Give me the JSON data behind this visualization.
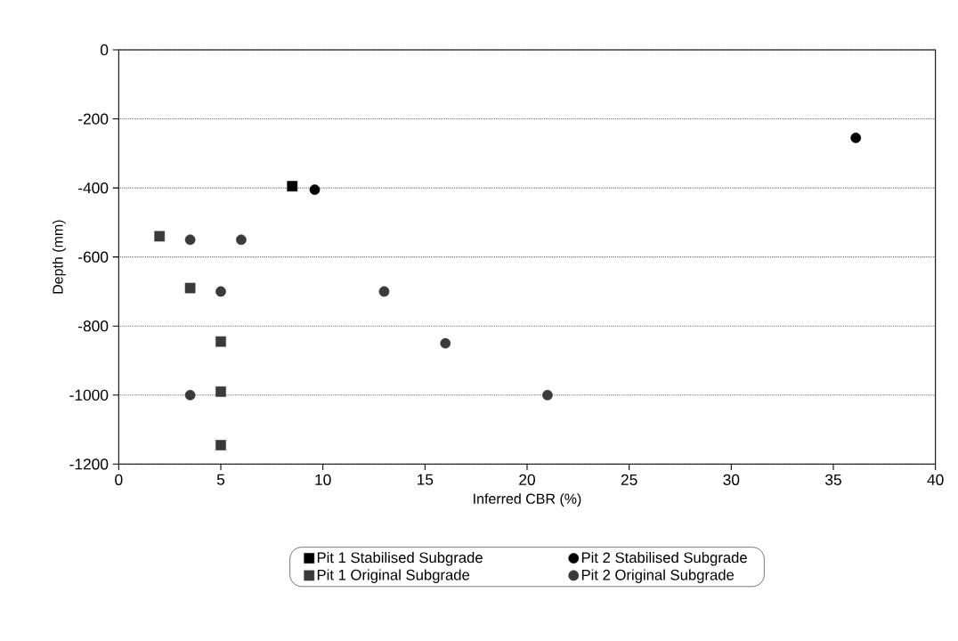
{
  "chart_data": {
    "type": "scatter",
    "xlabel": "Inferred CBR (%)",
    "ylabel": "Depth (mm)",
    "xlim": [
      0,
      40
    ],
    "xticks": [
      0,
      5,
      10,
      15,
      20,
      25,
      30,
      35,
      40
    ],
    "ylim": [
      -1200,
      0
    ],
    "yticks": [
      -1200,
      -1000,
      -800,
      -600,
      -400,
      -200,
      0
    ],
    "grid": "y",
    "legend": "bottom",
    "series": [
      {
        "name": "Pit 1 Stabilised Subgrade",
        "color": "#000000",
        "marker": "square",
        "x": [
          8.5
        ],
        "values": [
          -395
        ]
      },
      {
        "name": "Pit 2 Stabilised Subgrade",
        "color": "#000000",
        "marker": "circle",
        "x": [
          9.6,
          36.1
        ],
        "values": [
          -405,
          -255
        ]
      },
      {
        "name": "Pit 1 Original Subgrade",
        "color": "#3a3a3a",
        "marker": "square",
        "x": [
          2,
          3.5,
          5,
          5,
          5
        ],
        "values": [
          -540,
          -690,
          -845,
          -990,
          -1145
        ]
      },
      {
        "name": "Pit 2 Original Subgrade",
        "color": "#3a3a3a",
        "marker": "circle",
        "x": [
          3.5,
          6,
          5,
          13,
          16,
          3.5,
          21
        ],
        "values": [
          -550,
          -550,
          -700,
          -700,
          -850,
          -1000,
          -1000
        ]
      }
    ]
  }
}
